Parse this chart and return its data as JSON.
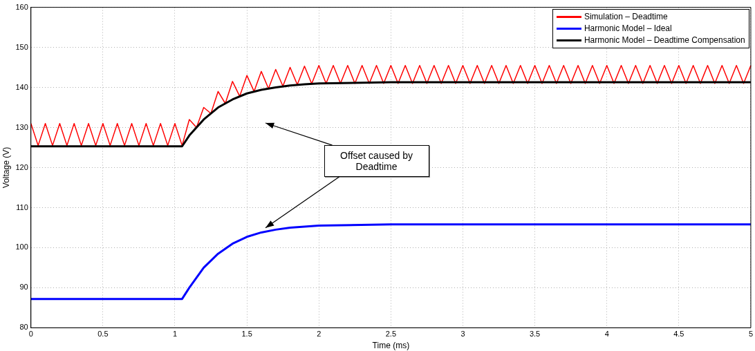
{
  "chart_data": {
    "type": "line",
    "xlabel": "Time (ms)",
    "ylabel": "Voltage (V)",
    "xlim": [
      0,
      5
    ],
    "xticks": [
      0,
      0.5,
      1,
      1.5,
      2,
      2.5,
      3,
      3.5,
      4,
      4.5,
      5
    ],
    "ylim": [
      80,
      160
    ],
    "yticks": [
      80,
      90,
      100,
      110,
      120,
      130,
      140,
      150,
      160
    ],
    "grid": true,
    "legend": "top right",
    "marker": "none",
    "line_style": "solid",
    "series": [
      {
        "name": "Simulation – Deadtime",
        "color": "#ff0000",
        "x": [
          0,
          0.05,
          0.1,
          0.15,
          0.2,
          0.25,
          0.3,
          0.35,
          0.4,
          0.45,
          0.5,
          0.55,
          0.6,
          0.65,
          0.7,
          0.75,
          0.8,
          0.85,
          0.9,
          0.95,
          1,
          1.05,
          1.1,
          1.15,
          1.2,
          1.25,
          1.3,
          1.35,
          1.4,
          1.45,
          1.5,
          1.55,
          1.6,
          1.65,
          1.7,
          1.75,
          1.8,
          1.85,
          1.9,
          1.95,
          2,
          2.05,
          2.1,
          2.15,
          2.2,
          2.25,
          2.3,
          2.35,
          2.4,
          2.45,
          2.5,
          2.55,
          2.6,
          2.65,
          2.7,
          2.75,
          2.8,
          2.85,
          2.9,
          2.95,
          3,
          3.05,
          3.1,
          3.15,
          3.2,
          3.25,
          3.3,
          3.35,
          3.4,
          3.45,
          3.5,
          3.55,
          3.6,
          3.65,
          3.7,
          3.75,
          3.8,
          3.85,
          3.9,
          3.95,
          4,
          4.05,
          4.1,
          4.15,
          4.2,
          4.25,
          4.3,
          4.35,
          4.4,
          4.45,
          4.5,
          4.55,
          4.6,
          4.65,
          4.7,
          4.75,
          4.8,
          4.85,
          4.9,
          4.95,
          5
        ],
        "values": [
          131,
          125.5,
          131,
          125.5,
          131,
          125.5,
          131,
          125.5,
          131,
          125.5,
          131,
          125.5,
          131,
          125.5,
          131,
          125.5,
          131,
          125.5,
          131,
          125.5,
          131,
          125.5,
          132,
          130,
          135,
          133.5,
          139,
          136,
          141.5,
          137.8,
          143,
          139,
          144,
          139.7,
          144.5,
          140.3,
          145,
          140.7,
          145.3,
          140.9,
          145.5,
          141,
          145.5,
          141,
          145.5,
          141,
          145.5,
          141,
          145.5,
          141,
          145.5,
          141,
          145.5,
          141,
          145.5,
          141,
          145.5,
          141,
          145.5,
          141,
          145.5,
          141,
          145.5,
          141,
          145.5,
          141,
          145.5,
          141,
          145.5,
          141,
          145.5,
          141,
          145.5,
          141,
          145.5,
          141,
          145.5,
          141,
          145.5,
          141,
          145.5,
          141,
          145.5,
          141,
          145.5,
          141,
          145.5,
          141,
          145.5,
          141,
          145.5,
          141,
          145.5,
          141,
          145.5,
          141,
          145.5,
          141,
          145.5,
          141,
          145.5
        ]
      },
      {
        "name": "Harmonic Model – Ideal",
        "color": "#0000ff",
        "x": [
          0,
          1.05,
          1.1,
          1.2,
          1.3,
          1.4,
          1.5,
          1.6,
          1.7,
          1.8,
          2,
          2.5,
          5
        ],
        "values": [
          87.2,
          87.2,
          90,
          95,
          98.5,
          101,
          102.7,
          103.8,
          104.5,
          105,
          105.5,
          105.8,
          105.8
        ]
      },
      {
        "name": "Harmonic Model – Deadtime Compensation",
        "color": "#000000",
        "x": [
          0,
          1.05,
          1.1,
          1.2,
          1.3,
          1.4,
          1.5,
          1.6,
          1.7,
          1.8,
          1.9,
          2,
          2.5,
          5
        ],
        "values": [
          125.3,
          125.3,
          128,
          132,
          135,
          137,
          138.5,
          139.4,
          140,
          140.5,
          140.8,
          141,
          141.3,
          141.3
        ]
      }
    ],
    "annotations": [
      "Offset caused by Deadtime"
    ]
  }
}
